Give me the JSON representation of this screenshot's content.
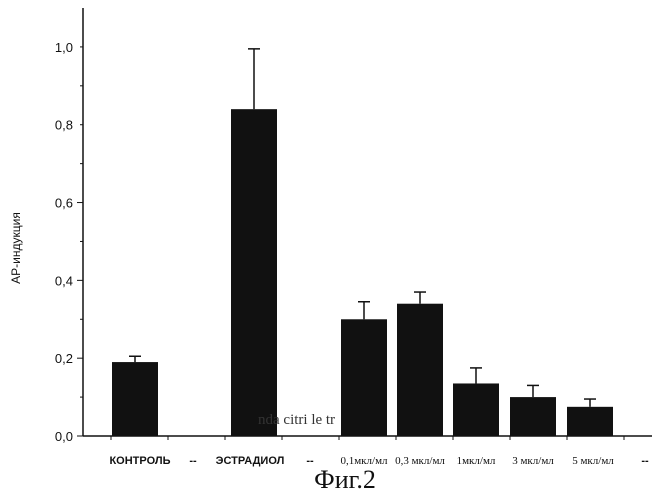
{
  "chart_data": {
    "type": "bar",
    "ylabel": "АР-индукция",
    "ylim": [
      0,
      1.1
    ],
    "yticks": [
      "0,0",
      "0,2",
      "0,4",
      "0,6",
      "0,8",
      "1,0"
    ],
    "ytick_values": [
      0,
      0.2,
      0.4,
      0.6,
      0.8,
      1.0
    ],
    "categories": [
      "КОНТРОЛЬ",
      "ЭСТРАДИОЛ",
      "0,1мкл/мл",
      "0,3 мкл/мл",
      "1мкл/мл",
      "3 мкл/мл",
      "5 мкл/мл"
    ],
    "values": [
      0.19,
      0.84,
      0.3,
      0.34,
      0.135,
      0.1,
      0.075
    ],
    "errors": [
      0.015,
      0.155,
      0.045,
      0.03,
      0.04,
      0.03,
      0.02
    ],
    "separators": [
      "--",
      "--",
      "--"
    ],
    "overlay_text": "nda citri   le   tr",
    "bar_color": "#111111",
    "grid": false,
    "legend": "none"
  },
  "caption": "Фиг.2"
}
